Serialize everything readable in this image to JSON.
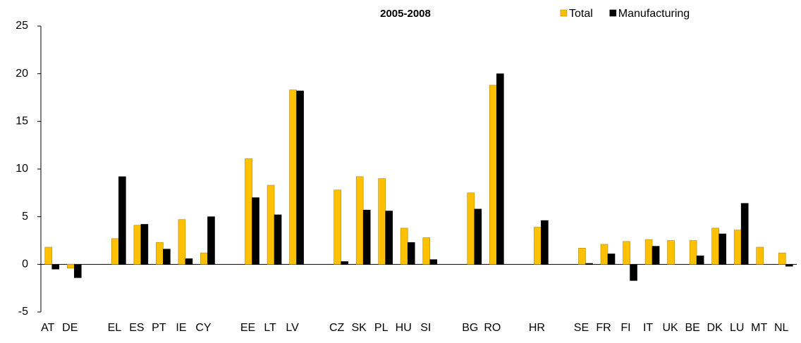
{
  "chart_data": {
    "type": "bar",
    "title": "2005-2008",
    "categories": [
      "AT",
      "DE",
      null,
      "EL",
      "ES",
      "PT",
      "IE",
      "CY",
      null,
      "EE",
      "LT",
      "LV",
      null,
      "CZ",
      "SK",
      "PL",
      "HU",
      "SI",
      null,
      "BG",
      "RO",
      null,
      "HR",
      null,
      "SE",
      "FR",
      "FI",
      "IT",
      "UK",
      "BE",
      "DK",
      "LU",
      "MT",
      "NL"
    ],
    "series": [
      {
        "name": "Total",
        "color": "#ffc000",
        "values": [
          1.8,
          -0.4,
          null,
          2.7,
          4.1,
          2.3,
          4.7,
          1.2,
          null,
          11.1,
          8.3,
          18.3,
          null,
          7.8,
          9.2,
          9.0,
          3.8,
          2.8,
          null,
          7.5,
          18.8,
          null,
          3.9,
          null,
          1.7,
          2.1,
          2.4,
          2.6,
          2.5,
          2.5,
          3.8,
          3.6,
          1.8,
          1.2
        ]
      },
      {
        "name": "Manufacturing",
        "color": "#000000",
        "values": [
          -0.5,
          -1.4,
          null,
          9.2,
          4.2,
          1.6,
          0.6,
          5.0,
          null,
          7.0,
          5.2,
          18.2,
          null,
          0.3,
          5.7,
          5.6,
          2.3,
          0.5,
          null,
          5.8,
          20.0,
          null,
          4.6,
          null,
          0.1,
          1.1,
          -1.7,
          1.9,
          null,
          0.9,
          3.2,
          6.4,
          null,
          -0.2
        ]
      }
    ],
    "ylim": [
      -5,
      25
    ],
    "yticks": [
      -5,
      0,
      5,
      10,
      15,
      20,
      25
    ],
    "grid": false,
    "legend": "top-right"
  }
}
